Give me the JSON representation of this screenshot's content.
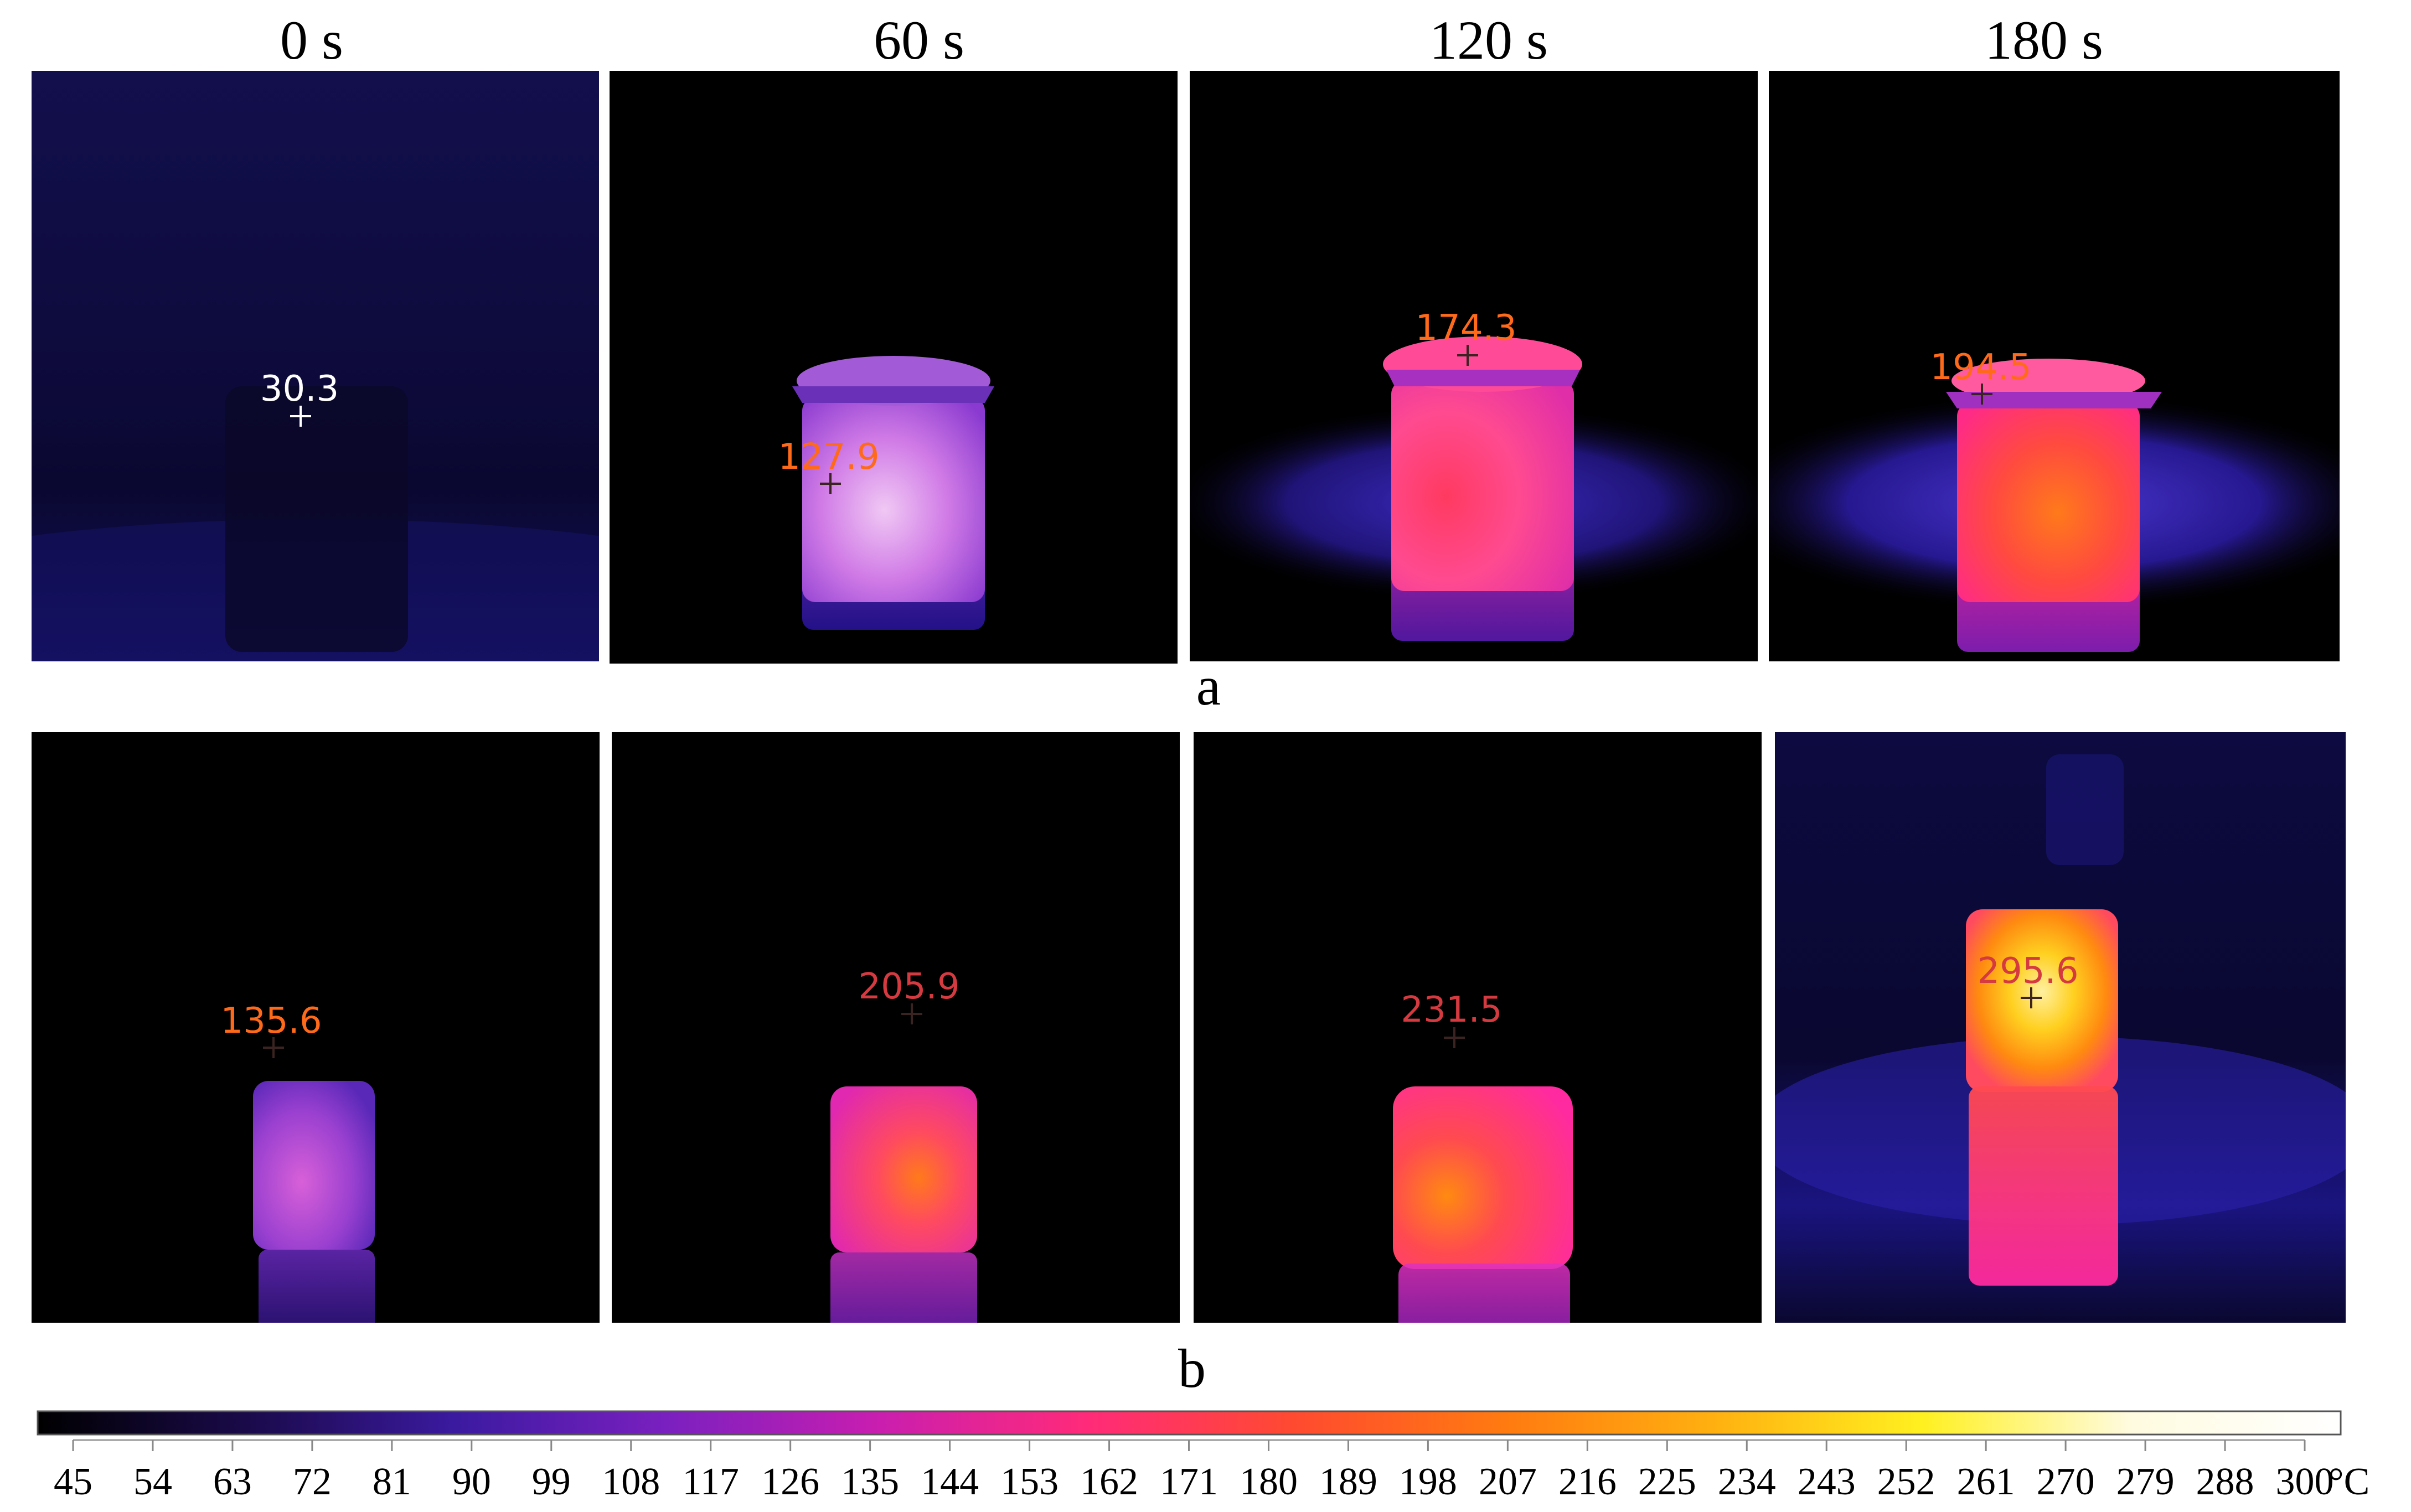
{
  "columns": [
    "0 s",
    "60 s",
    "120 s",
    "180 s"
  ],
  "row_labels": {
    "a": "a",
    "b": "b"
  },
  "row_a_readings": [
    "30.3",
    "127.9",
    "174.3",
    "194.5"
  ],
  "row_b_readings": [
    "135.6",
    "205.9",
    "231.5",
    "295.6"
  ],
  "colorbar": {
    "ticks": [
      "45",
      "54",
      "63",
      "72",
      "81",
      "90",
      "99",
      "108",
      "117",
      "126",
      "135",
      "144",
      "153",
      "162",
      "171",
      "180",
      "189",
      "198",
      "207",
      "216",
      "225",
      "234",
      "243",
      "252",
      "261",
      "270",
      "279",
      "288",
      "300"
    ],
    "unit": "°C",
    "range": [
      45,
      300
    ],
    "palette": [
      "#000000",
      "#1a0a4a",
      "#3b1aa0",
      "#7a20c0",
      "#c81eb0",
      "#ff2a7a",
      "#ff4a30",
      "#ff7a10",
      "#ffb010",
      "#fff020",
      "#fffbe0",
      "#ffffff"
    ]
  }
}
